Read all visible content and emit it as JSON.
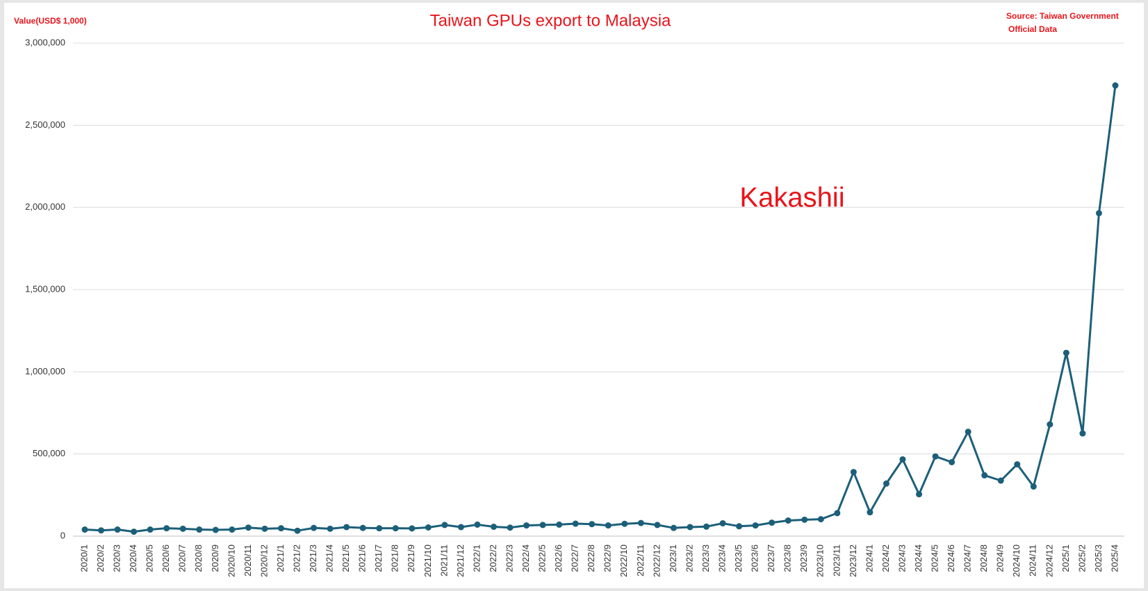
{
  "chart_data": {
    "type": "line",
    "title": "Taiwan GPUs export to Malaysia",
    "y_axis_label": "Value(USD$ 1,000)",
    "source": [
      "Source: Taiwan Government",
      "Official Data"
    ],
    "watermark": "Kakashii",
    "categories": [
      "2020/1",
      "2020/2",
      "2020/3",
      "2020/4",
      "2020/5",
      "2020/6",
      "2020/7",
      "2020/8",
      "2020/9",
      "2020/10",
      "2020/11",
      "2020/12",
      "2021/1",
      "2021/2",
      "2021/3",
      "2021/4",
      "2021/5",
      "2021/6",
      "2021/7",
      "2021/8",
      "2021/9",
      "2021/10",
      "2021/11",
      "2021/12",
      "2022/1",
      "2022/2",
      "2022/3",
      "2022/4",
      "2022/5",
      "2022/6",
      "2022/7",
      "2022/8",
      "2022/9",
      "2022/10",
      "2022/11",
      "2022/12",
      "2023/1",
      "2023/2",
      "2023/3",
      "2023/4",
      "2023/5",
      "2023/6",
      "2023/7",
      "2023/8",
      "2023/9",
      "2023/10",
      "2023/11",
      "2023/12",
      "2024/1",
      "2024/2",
      "2024/3",
      "2024/4",
      "2024/5",
      "2024/6",
      "2024/7",
      "2024/8",
      "2024/9",
      "2024/10",
      "2024/11",
      "2024/12",
      "2025/1",
      "2025/2",
      "2025/3",
      "2025/4"
    ],
    "series": [
      {
        "name": "Value",
        "color": "#1c5f79",
        "values": [
          40000,
          35000,
          40000,
          27000,
          40000,
          48000,
          45000,
          40000,
          38000,
          40000,
          52000,
          45000,
          48000,
          33000,
          50000,
          45000,
          55000,
          50000,
          48000,
          48000,
          47000,
          53000,
          68000,
          55000,
          70000,
          57000,
          52000,
          65000,
          68000,
          70000,
          76000,
          73000,
          65000,
          75000,
          80000,
          68000,
          50000,
          55000,
          58000,
          78000,
          60000,
          65000,
          82000,
          95000,
          100000,
          103000,
          140000,
          390000,
          145000,
          320000,
          467000,
          255000,
          485000,
          450000,
          635000,
          370000,
          338000,
          437000,
          302000,
          680000,
          1115000,
          625000,
          1965000,
          2742000
        ]
      }
    ],
    "ylim": [
      0,
      3000000
    ],
    "yticks": [
      0,
      {
        "value": 500000,
        "label": "500,000"
      },
      {
        "value": 1000000,
        "label": "1,000,000"
      },
      {
        "value": 1500000,
        "label": "1,500,000"
      },
      {
        "value": 2000000,
        "label": "2,000,000"
      },
      {
        "value": 2500000,
        "label": "2,500,000"
      },
      {
        "value": 3000000,
        "label": "3,000,000"
      }
    ],
    "grid": true
  }
}
